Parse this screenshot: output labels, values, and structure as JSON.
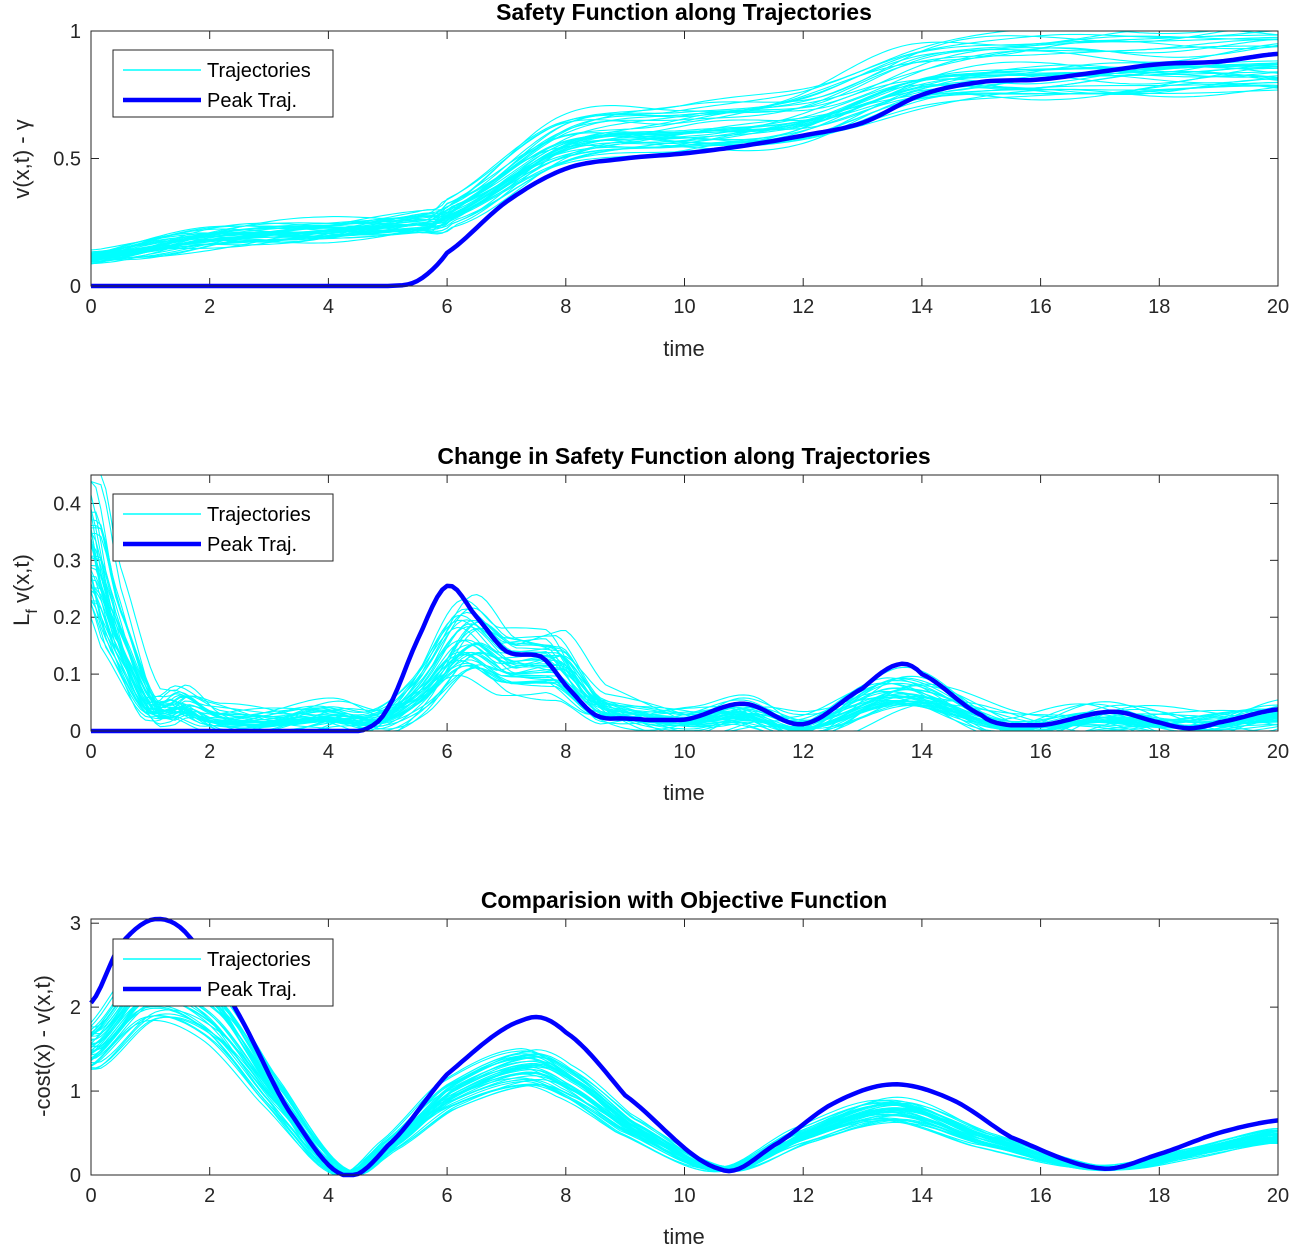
{
  "colors": {
    "trajectories": "#00FFFF",
    "peak": "#0000FF",
    "axis": "#262626"
  },
  "legend": {
    "trajectories_label": "Trajectories",
    "peak_label": "Peak Traj.",
    "placement": "top-left"
  },
  "chart_data": [
    {
      "type": "line",
      "title": "Safety Function along Trajectories",
      "xlabel": "time",
      "ylabel": "v(x,t) - γ",
      "xlim": [
        0,
        20
      ],
      "ylim": [
        0,
        1
      ],
      "xticks": [
        "0",
        "2",
        "4",
        "6",
        "8",
        "10",
        "12",
        "14",
        "16",
        "18",
        "20"
      ],
      "yticks": [
        "0",
        "0.5",
        "1"
      ],
      "ytick_values": [
        0,
        0.5,
        1
      ],
      "series": [
        {
          "name": "Trajectories",
          "family": "trajectories",
          "count": 40,
          "variation": [
            -0.18,
            0.1
          ],
          "x": [
            0,
            2,
            4,
            5.5,
            6,
            8,
            10,
            12,
            14,
            16,
            18,
            20
          ],
          "values": [
            0.12,
            0.2,
            0.23,
            0.26,
            0.3,
            0.6,
            0.65,
            0.7,
            0.87,
            0.91,
            0.92,
            0.94
          ]
        },
        {
          "name": "Peak Traj.",
          "family": "peak",
          "x": [
            0,
            2,
            4,
            5,
            5.5,
            6,
            7,
            8,
            9,
            10,
            11,
            12,
            13,
            14,
            15,
            16,
            17,
            18,
            19,
            20
          ],
          "values": [
            0,
            0,
            0,
            0,
            0.02,
            0.13,
            0.33,
            0.46,
            0.5,
            0.52,
            0.55,
            0.59,
            0.64,
            0.75,
            0.8,
            0.81,
            0.84,
            0.87,
            0.88,
            0.91
          ]
        }
      ]
    },
    {
      "type": "line",
      "title": "Change in Safety Function along Trajectories",
      "xlabel": "time",
      "ylabel": "Lf v(x,t)",
      "ylabel_main": "L",
      "ylabel_sub": "f",
      "ylabel_rest": " v(x,t)",
      "xlim": [
        0,
        20
      ],
      "ylim": [
        0,
        0.45
      ],
      "xticks": [
        "0",
        "2",
        "4",
        "6",
        "8",
        "10",
        "12",
        "14",
        "16",
        "18",
        "20"
      ],
      "yticks": [
        "0",
        "0.1",
        "0.2",
        "0.3",
        "0.4"
      ],
      "ytick_values": [
        0,
        0.1,
        0.2,
        0.3,
        0.4
      ],
      "series": [
        {
          "name": "Trajectories",
          "family": "trajectories",
          "count": 40,
          "variation": [
            -0.5,
            0.15
          ],
          "x": [
            0,
            0.3,
            1,
            1.5,
            2,
            3,
            4,
            4.8,
            5.5,
            6.3,
            7,
            7.8,
            8.5,
            10,
            11,
            12,
            13.6,
            15.5,
            17,
            18.5,
            20
          ],
          "values": [
            0.4,
            0.25,
            0.05,
            0.06,
            0.03,
            0.02,
            0.03,
            0.02,
            0.08,
            0.2,
            0.15,
            0.15,
            0.05,
            0.02,
            0.04,
            0.01,
            0.08,
            0.01,
            0.03,
            0.01,
            0.03
          ]
        },
        {
          "name": "Peak Traj.",
          "family": "peak",
          "x": [
            0,
            1,
            2,
            3,
            4,
            4.6,
            5,
            5.5,
            6,
            6.5,
            7,
            7.6,
            8,
            8.5,
            9,
            10,
            11,
            12,
            13,
            13.6,
            14,
            15,
            15.5,
            16,
            17.2,
            18,
            18.5,
            19,
            20
          ],
          "values": [
            0,
            0,
            0,
            0,
            0,
            0.002,
            0.04,
            0.16,
            0.255,
            0.2,
            0.14,
            0.13,
            0.08,
            0.028,
            0.022,
            0.02,
            0.048,
            0.012,
            0.075,
            0.117,
            0.1,
            0.028,
            0.01,
            0.01,
            0.034,
            0.015,
            0.005,
            0.015,
            0.038
          ]
        }
      ]
    },
    {
      "type": "line",
      "title": "Comparision with Objective Function",
      "xlabel": "time",
      "ylabel": "-cost(x) - v(x,t)",
      "xlim": [
        0,
        20
      ],
      "ylim": [
        0,
        3.05
      ],
      "xticks": [
        "0",
        "2",
        "4",
        "6",
        "8",
        "10",
        "12",
        "14",
        "16",
        "18",
        "20"
      ],
      "yticks": [
        "0",
        "1",
        "2",
        "3"
      ],
      "ytick_values": [
        0,
        1,
        2,
        3
      ],
      "series": [
        {
          "name": "Trajectories",
          "family": "trajectories",
          "count": 40,
          "variation": [
            -0.3,
            0.0
          ],
          "x": [
            0,
            1,
            2,
            3,
            4.2,
            5,
            6,
            7.3,
            8,
            9,
            10.6,
            12,
            13.5,
            15,
            17,
            18.5,
            20
          ],
          "values": [
            1.75,
            2.6,
            2.3,
            1.2,
            0.05,
            0.4,
            1.1,
            1.5,
            1.3,
            0.7,
            0.08,
            0.55,
            0.9,
            0.5,
            0.1,
            0.3,
            0.55
          ]
        },
        {
          "name": "Peak Traj.",
          "family": "peak",
          "x": [
            0,
            0.5,
            1.1,
            1.7,
            2.5,
            3.3,
            4.25,
            5,
            6,
            7.3,
            8,
            9,
            10.6,
            11.5,
            12.5,
            13.5,
            14.5,
            15.5,
            17,
            18,
            19,
            20
          ],
          "values": [
            2.05,
            2.75,
            3.05,
            2.8,
            1.9,
            0.8,
            0.0,
            0.35,
            1.2,
            1.85,
            1.7,
            0.95,
            0.07,
            0.35,
            0.85,
            1.08,
            0.9,
            0.45,
            0.08,
            0.25,
            0.5,
            0.65
          ]
        }
      ]
    }
  ]
}
